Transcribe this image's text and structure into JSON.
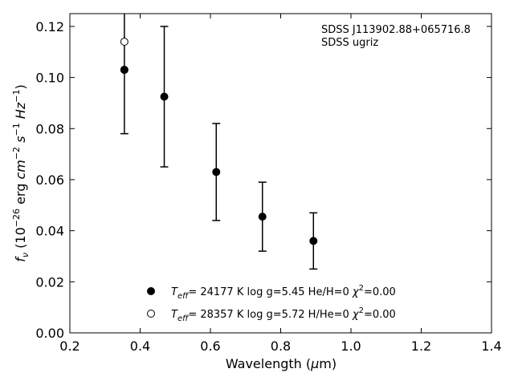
{
  "chart_data": {
    "type": "scatter",
    "title": "",
    "xlabel": "Wavelength (μm)",
    "ylabel": "f_ν (10^-26 erg cm^-2 s^-1 Hz^-1)",
    "xlim": [
      0.2,
      1.4
    ],
    "ylim": [
      0.0,
      0.125
    ],
    "xticks": [
      "0.2",
      "0.4",
      "0.6",
      "0.8",
      "1.0",
      "1.2",
      "1.4"
    ],
    "yticks": [
      "0.00",
      "0.02",
      "0.04",
      "0.06",
      "0.08",
      "0.10",
      "0.12"
    ],
    "grid": false,
    "annotation": [
      "SDSS J113902.88+065716.8",
      "SDSS ugriz"
    ],
    "observed": {
      "x": [
        0.3551,
        0.4686,
        0.6166,
        0.748,
        0.8932
      ],
      "y": [
        0.103,
        0.0925,
        0.063,
        0.0455,
        0.036
      ],
      "yerr": [
        0.025,
        0.0275,
        0.019,
        0.0135,
        0.011
      ]
    },
    "series": [
      {
        "name": "T_eff= 24177 K  log g=5.45  He/H=0  χ²=0.00",
        "marker": "filled",
        "x": [
          0.3551
        ],
        "y": [
          0.103
        ]
      },
      {
        "name": "T_eff= 28357 K  log g=5.72  H/He=0  χ²=0.00",
        "marker": "open",
        "x": [
          0.3551
        ],
        "y": [
          0.114
        ]
      }
    ],
    "legend_position": "bottom-center"
  }
}
